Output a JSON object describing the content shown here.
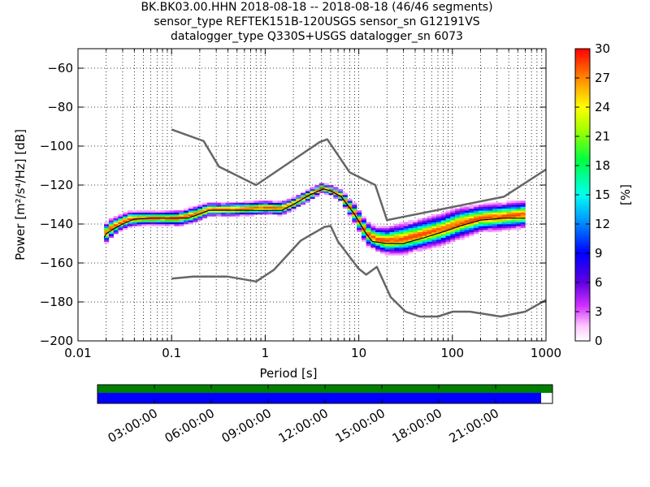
{
  "chart_data": {
    "type": "heatmap",
    "title_lines": [
      "BK.BK03.00.HHN   2018-08-18 -- 2018-08-18  (46/46 segments)",
      "sensor_type REFTEK151B-120USGS sensor_sn G12191VS",
      "datalogger_type Q330S+USGS datalogger_sn 6073"
    ],
    "xlabel": "Period [s]",
    "ylabel": "Power [m²/s⁴/Hz] [dB]",
    "x_scale": "log",
    "xlim": [
      0.01,
      1000
    ],
    "ylim": [
      -200,
      -50
    ],
    "x_ticks": [
      0.01,
      0.1,
      1,
      10,
      100,
      1000
    ],
    "x_tick_labels": [
      "0.01",
      "0.1",
      "1",
      "10",
      "100",
      "1000"
    ],
    "y_ticks": [
      -200,
      -180,
      -160,
      -140,
      -120,
      -100,
      -80,
      -60
    ],
    "y_tick_labels": [
      "−200",
      "−180",
      "−160",
      "−140",
      "−120",
      "−100",
      "−80",
      "−60"
    ],
    "grid": true,
    "colorbar": {
      "label": "[%]",
      "range": [
        0,
        30
      ],
      "ticks": [
        0,
        3,
        6,
        9,
        12,
        15,
        18,
        21,
        24,
        27,
        30
      ],
      "tick_labels": [
        "0",
        "3",
        "6",
        "9",
        "12",
        "15",
        "18",
        "21",
        "24",
        "27",
        "30"
      ]
    },
    "noise_models": [
      {
        "kind": "high-noise",
        "color": "#666666",
        "points": [
          [
            0.1,
            -91.5
          ],
          [
            0.22,
            -97.4
          ],
          [
            0.32,
            -110.5
          ],
          [
            0.8,
            -120
          ],
          [
            3.8,
            -98
          ],
          [
            4.6,
            -96.5
          ],
          [
            8,
            -113.5
          ],
          [
            15,
            -120
          ],
          [
            20,
            -138
          ],
          [
            354,
            -126
          ],
          [
            1000,
            -112
          ]
        ]
      },
      {
        "kind": "low-noise",
        "color": "#666666",
        "points": [
          [
            0.1,
            -168
          ],
          [
            0.17,
            -167
          ],
          [
            0.4,
            -167
          ],
          [
            0.8,
            -169.5
          ],
          [
            1.24,
            -163.5
          ],
          [
            2.4,
            -148.5
          ],
          [
            4.3,
            -141.5
          ],
          [
            5,
            -141
          ],
          [
            6,
            -149
          ],
          [
            10,
            -163
          ],
          [
            12,
            -166
          ],
          [
            15.6,
            -162
          ],
          [
            21.9,
            -177.5
          ],
          [
            31.6,
            -185
          ],
          [
            45,
            -187.5
          ],
          [
            70,
            -187.5
          ],
          [
            101,
            -185
          ],
          [
            154,
            -185
          ],
          [
            328,
            -187.5
          ],
          [
            600,
            -185
          ],
          [
            1000,
            -179
          ]
        ]
      }
    ],
    "mean_curve": {
      "color": "#000000",
      "points": [
        [
          0.019,
          -147
        ],
        [
          0.02,
          -145
        ],
        [
          0.025,
          -142
        ],
        [
          0.03,
          -140
        ],
        [
          0.04,
          -137.5
        ],
        [
          0.06,
          -137
        ],
        [
          0.1,
          -137
        ],
        [
          0.15,
          -137
        ],
        [
          0.25,
          -133
        ],
        [
          0.4,
          -133
        ],
        [
          0.7,
          -133
        ],
        [
          1.5,
          -133
        ],
        [
          2,
          -130
        ],
        [
          3,
          -125
        ],
        [
          4.2,
          -122
        ],
        [
          5,
          -123
        ],
        [
          6.5,
          -126
        ],
        [
          9,
          -135
        ],
        [
          12,
          -145
        ],
        [
          14,
          -149
        ],
        [
          20,
          -150
        ],
        [
          30,
          -150
        ],
        [
          50,
          -147
        ],
        [
          80,
          -144
        ],
        [
          120,
          -141
        ],
        [
          200,
          -138
        ],
        [
          350,
          -137
        ],
        [
          600,
          -137
        ]
      ]
    },
    "psd_band": {
      "points": [
        [
          0.019,
          -146,
          5
        ],
        [
          0.022,
          -143,
          5
        ],
        [
          0.028,
          -140,
          4
        ],
        [
          0.035,
          -138,
          4
        ],
        [
          0.05,
          -137.5,
          3.5
        ],
        [
          0.08,
          -137.5,
          3.5
        ],
        [
          0.12,
          -137.5,
          4
        ],
        [
          0.18,
          -135.5,
          4
        ],
        [
          0.25,
          -133,
          3.5
        ],
        [
          0.4,
          -133,
          3.5
        ],
        [
          0.7,
          -132.5,
          3.5
        ],
        [
          1,
          -132,
          3.5
        ],
        [
          1.5,
          -132.5,
          3.5
        ],
        [
          2,
          -130,
          3
        ],
        [
          3,
          -125.5,
          3
        ],
        [
          4,
          -122,
          2.5
        ],
        [
          5,
          -123,
          2.5
        ],
        [
          6.5,
          -126,
          3
        ],
        [
          9,
          -135,
          5
        ],
        [
          12,
          -145,
          6
        ],
        [
          15,
          -148,
          6
        ],
        [
          20,
          -149,
          7
        ],
        [
          30,
          -148,
          8
        ],
        [
          50,
          -145.5,
          8
        ],
        [
          80,
          -143,
          8
        ],
        [
          120,
          -140,
          8
        ],
        [
          200,
          -137.5,
          7
        ],
        [
          350,
          -136.5,
          7
        ],
        [
          600,
          -135.5,
          7
        ]
      ]
    }
  },
  "timeline": {
    "tick_labels": [
      "03:00:00",
      "06:00:00",
      "09:00:00",
      "12:00:00",
      "15:00:00",
      "18:00:00",
      "21:00:00"
    ],
    "tick_hours": [
      3,
      6,
      9,
      12,
      15,
      18,
      21
    ],
    "span_hours": 24,
    "available_fraction": 1.0,
    "processed_fraction": 0.975,
    "available_color": "#008000",
    "processed_color": "#0000ff"
  }
}
